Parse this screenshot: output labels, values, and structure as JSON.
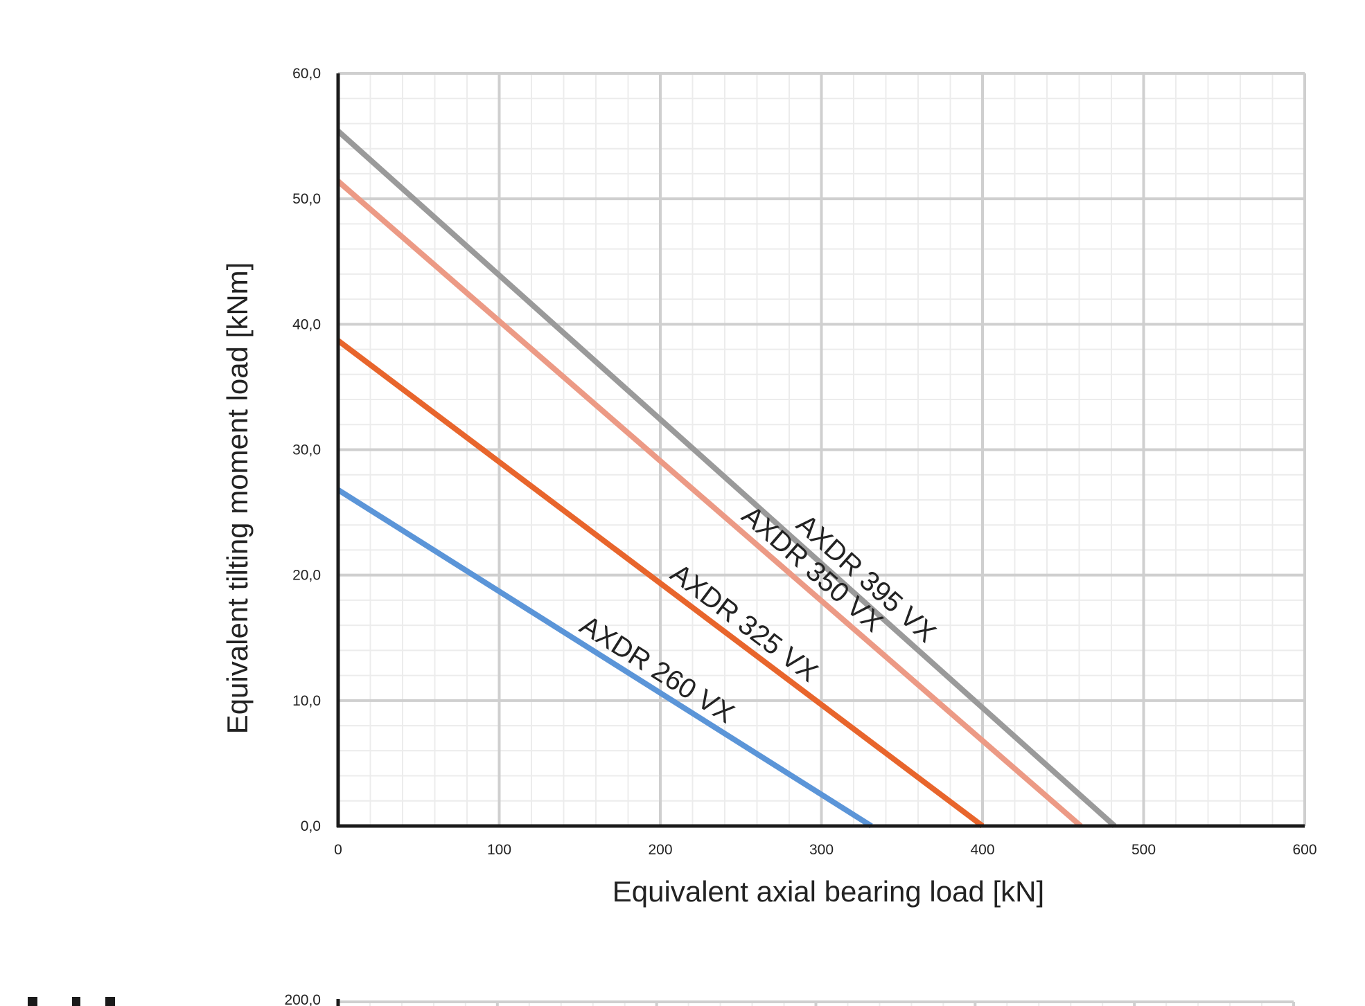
{
  "chart_data": [
    {
      "type": "line",
      "xlabel": "Equivalent axial bearing load [kN]",
      "ylabel": "Equivalent tilting moment load [kNm]",
      "xlim": [
        0,
        600
      ],
      "ylim": [
        0,
        60
      ],
      "x_ticks": [
        "0",
        "100",
        "200",
        "300",
        "400",
        "500",
        "600"
      ],
      "y_ticks": [
        "0,0",
        "10,0",
        "20,0",
        "30,0",
        "40,0",
        "50,0",
        "60,0"
      ],
      "x_tick_values": [
        0,
        100,
        200,
        300,
        400,
        500,
        600
      ],
      "y_tick_values": [
        0,
        10,
        20,
        30,
        40,
        50,
        60
      ],
      "grid": true,
      "series": [
        {
          "name": "AXDR 395 VX",
          "color": "#9a9a9a",
          "x": [
            0,
            482
          ],
          "y": [
            55.4,
            0
          ]
        },
        {
          "name": "AXDR 350 VX",
          "color": "#ec9a85",
          "x": [
            0,
            461
          ],
          "y": [
            51.4,
            0
          ]
        },
        {
          "name": "AXDR 325 VX",
          "color": "#e8652c",
          "x": [
            0,
            400
          ],
          "y": [
            38.7,
            0
          ]
        },
        {
          "name": "AXDR 260 VX",
          "color": "#5b95d8",
          "x": [
            0,
            331
          ],
          "y": [
            26.8,
            0
          ]
        }
      ]
    },
    {
      "type": "line",
      "y_ticks": [
        "200,0"
      ],
      "y_tick_values": [
        200
      ],
      "grid": true
    }
  ]
}
